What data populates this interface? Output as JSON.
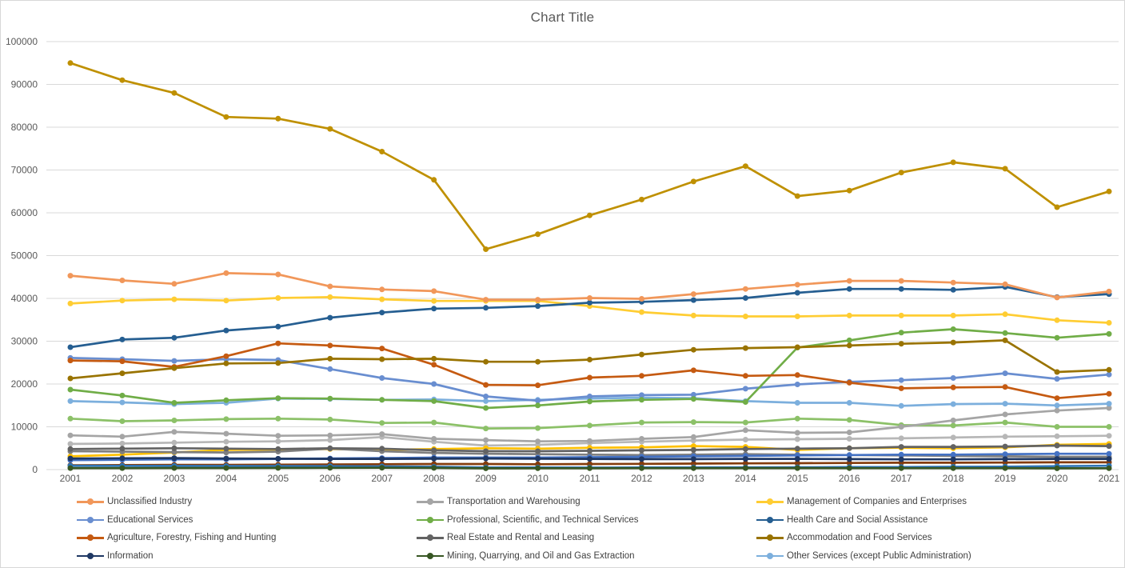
{
  "title": "Chart Title",
  "colors": {
    "gridline": "#d9d9d9",
    "axis_text": "#595959",
    "title_text": "#595959",
    "legend_text": "#404040"
  },
  "chart_data": {
    "type": "line",
    "title": "Chart Title",
    "xlabel": "",
    "ylabel": "",
    "x": [
      2001,
      2002,
      2003,
      2004,
      2005,
      2006,
      2007,
      2008,
      2009,
      2010,
      2011,
      2012,
      2013,
      2014,
      2015,
      2016,
      2017,
      2018,
      2019,
      2020,
      2021
    ],
    "ylim": [
      0,
      100000
    ],
    "y_tick_step": 10000,
    "y_tick_labels": [
      "0",
      "10000",
      "20000",
      "30000",
      "40000",
      "50000",
      "60000",
      "70000",
      "80000",
      "90000",
      "100000"
    ],
    "grid": true,
    "legend_position": "bottom",
    "series": [
      {
        "name": "",
        "in_legend": false,
        "color": "#BF9000",
        "values": [
          95000,
          91000,
          88000,
          82400,
          82000,
          79600,
          74300,
          67700,
          51500,
          55000,
          59400,
          63100,
          67300,
          70900,
          63900,
          65200,
          69400,
          71800,
          70300,
          61300,
          65000
        ]
      },
      {
        "name": "",
        "in_legend": false,
        "color": "#8CC168",
        "values": [
          11900,
          11300,
          11500,
          11800,
          11900,
          11700,
          10900,
          11000,
          9600,
          9700,
          10300,
          11000,
          11100,
          11000,
          11900,
          11600,
          10400,
          10300,
          11000,
          10000,
          10000
        ]
      },
      {
        "name": "",
        "in_legend": false,
        "color": "#B7B7B7",
        "values": [
          6000,
          6100,
          6300,
          6500,
          6600,
          6900,
          7600,
          6500,
          5600,
          5800,
          6200,
          6500,
          6800,
          7000,
          7100,
          7200,
          7300,
          7500,
          7700,
          7800,
          7900
        ]
      },
      {
        "name": "",
        "in_legend": false,
        "color": "#FFC000",
        "values": [
          3100,
          3500,
          4000,
          4600,
          4700,
          4800,
          4600,
          4800,
          5000,
          4900,
          5100,
          5200,
          5500,
          5300,
          4600,
          5000,
          5100,
          5000,
          5200,
          5800,
          6000
        ]
      },
      {
        "name": "",
        "in_legend": false,
        "color": "#7F7F7F",
        "values": [
          4300,
          4200,
          4100,
          4000,
          4200,
          4900,
          4300,
          3900,
          3700,
          3600,
          3500,
          3400,
          3500,
          3600,
          3500,
          3400,
          3300,
          3200,
          3100,
          3000,
          3000
        ]
      },
      {
        "name": "",
        "in_legend": false,
        "color": "#4472C4",
        "values": [
          2200,
          2300,
          2400,
          2400,
          2500,
          2600,
          2700,
          2800,
          2800,
          2800,
          2900,
          3000,
          3100,
          3200,
          3300,
          3400,
          3500,
          3500,
          3600,
          3700,
          3700
        ]
      },
      {
        "name": "",
        "in_legend": false,
        "color": "#843C0C",
        "values": [
          1000,
          1050,
          1100,
          1100,
          1150,
          1200,
          1250,
          1300,
          1300,
          1250,
          1300,
          1350,
          1400,
          1450,
          1500,
          1550,
          1600,
          1600,
          1650,
          1700,
          1700
        ]
      },
      {
        "name": "",
        "in_legend": false,
        "color": "#2E75B6",
        "values": [
          900,
          880,
          860,
          840,
          820,
          800,
          750,
          650,
          500,
          480,
          470,
          480,
          500,
          520,
          550,
          580,
          600,
          650,
          700,
          800,
          900
        ]
      },
      {
        "name": "Transportation and Warehousing",
        "in_legend": true,
        "color": "#A5A5A5",
        "values": [
          8000,
          7700,
          8800,
          8400,
          7900,
          8000,
          8300,
          7200,
          6900,
          6600,
          6700,
          7200,
          7600,
          9200,
          8600,
          8700,
          10000,
          11500,
          12900,
          13800,
          14400
        ]
      },
      {
        "name": "Management of Companies and Enterprises",
        "in_legend": true,
        "color": "#FFCD33",
        "values": [
          38800,
          39500,
          39800,
          39500,
          40100,
          40300,
          39800,
          39400,
          39400,
          39400,
          38200,
          36800,
          36000,
          35800,
          35800,
          36000,
          36000,
          36000,
          36300,
          34900,
          34300
        ]
      },
      {
        "name": "Other Services (except Public Administration)",
        "in_legend": true,
        "color": "#7CAFDD",
        "values": [
          16000,
          15700,
          15300,
          15600,
          16600,
          16500,
          16300,
          16400,
          16000,
          16300,
          16600,
          16800,
          16700,
          16000,
          15600,
          15600,
          14900,
          15300,
          15400,
          15000,
          15400
        ]
      },
      {
        "name": "Educational Services",
        "in_legend": true,
        "color": "#698ED0",
        "values": [
          26100,
          25800,
          25400,
          25800,
          25600,
          23500,
          21400,
          20000,
          17100,
          16100,
          17100,
          17400,
          17500,
          18900,
          19900,
          20500,
          20900,
          21400,
          22500,
          21200,
          22200
        ]
      },
      {
        "name": "Professional, Scientific, and Technical Services",
        "in_legend": true,
        "color": "#70AD47",
        "values": [
          18700,
          17300,
          15600,
          16200,
          16700,
          16600,
          16300,
          16000,
          14400,
          15000,
          15900,
          16300,
          16500,
          15800,
          28500,
          30200,
          32000,
          32800,
          31900,
          30800,
          31700
        ]
      },
      {
        "name": "Health Care and Social Assistance",
        "in_legend": true,
        "color": "#255E91",
        "values": [
          28600,
          30400,
          30800,
          32500,
          33400,
          35500,
          36700,
          37600,
          37800,
          38200,
          39000,
          39200,
          39600,
          40100,
          41300,
          42200,
          42200,
          42000,
          42700,
          40300,
          41000
        ]
      },
      {
        "name": "Agriculture, Forestry, Fishing and Hunting",
        "in_legend": true,
        "color": "#C55A11",
        "values": [
          25500,
          25300,
          24000,
          26500,
          29500,
          29000,
          28300,
          24500,
          19800,
          19700,
          21500,
          21900,
          23200,
          21900,
          22100,
          20300,
          19000,
          19200,
          19300,
          16700,
          17700
        ]
      },
      {
        "name": "Real Estate and Rental and Leasing",
        "in_legend": true,
        "color": "#636363",
        "values": [
          4800,
          4900,
          5000,
          4900,
          4800,
          5000,
          4900,
          4500,
          4300,
          4300,
          4400,
          4500,
          4600,
          4800,
          4900,
          5000,
          5300,
          5300,
          5400,
          5600,
          5500
        ]
      },
      {
        "name": "Accommodation and Food Services",
        "in_legend": true,
        "color": "#997300",
        "values": [
          21300,
          22500,
          23700,
          24800,
          24900,
          25900,
          25800,
          25900,
          25200,
          25200,
          25700,
          26900,
          28000,
          28400,
          28600,
          29000,
          29400,
          29700,
          30200,
          22800,
          23300
        ]
      },
      {
        "name": "Information",
        "in_legend": true,
        "color": "#1F3864",
        "values": [
          2600,
          2650,
          2700,
          2600,
          2550,
          2500,
          2500,
          2550,
          2600,
          2550,
          2500,
          2450,
          2450,
          2500,
          2500,
          2450,
          2400,
          2400,
          2450,
          2500,
          2500
        ]
      },
      {
        "name": "Mining, Quarrying, and Oil and Gas Extraction",
        "in_legend": true,
        "color": "#375623",
        "values": [
          350,
          360,
          370,
          380,
          400,
          420,
          430,
          400,
          300,
          310,
          320,
          330,
          340,
          360,
          350,
          340,
          330,
          330,
          340,
          300,
          320
        ]
      },
      {
        "name": "Unclassified Industry",
        "in_legend": true,
        "color": "#F1975A",
        "values": [
          45300,
          44200,
          43400,
          45900,
          45600,
          42800,
          42100,
          41700,
          39700,
          39700,
          40100,
          39900,
          41000,
          42200,
          43200,
          44100,
          44100,
          43700,
          43300,
          40200,
          41600
        ]
      }
    ],
    "legend_items": [
      {
        "label": "Unclassified Industry",
        "color": "#F1975A"
      },
      {
        "label": "Transportation and Warehousing",
        "color": "#A5A5A5"
      },
      {
        "label": "Management of Companies and Enterprises",
        "color": "#FFCD33"
      },
      {
        "label": "Educational Services",
        "color": "#698ED0"
      },
      {
        "label": "Professional, Scientific, and Technical Services",
        "color": "#70AD47"
      },
      {
        "label": "Health Care and Social Assistance",
        "color": "#255E91"
      },
      {
        "label": "Agriculture, Forestry, Fishing and Hunting",
        "color": "#C55A11"
      },
      {
        "label": "Real Estate and Rental and Leasing",
        "color": "#636363"
      },
      {
        "label": "Accommodation and Food Services",
        "color": "#997300"
      },
      {
        "label": "Information",
        "color": "#1F3864"
      },
      {
        "label": "Mining, Quarrying, and Oil and Gas Extraction",
        "color": "#375623"
      },
      {
        "label": "Other Services (except Public Administration)",
        "color": "#7CAFDD"
      }
    ]
  }
}
